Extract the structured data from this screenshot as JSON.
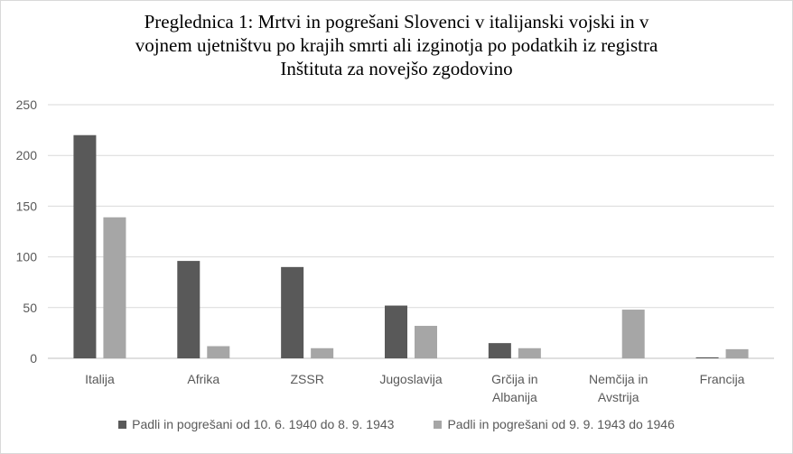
{
  "chart_data": {
    "type": "bar",
    "title_lines": [
      "Preglednica 1: Mrtvi in pogrešani Slovenci v italijanski vojski in v",
      "vojnem ujetništvu po krajih smrti ali izginotja po podatkih iz registra",
      "Inštituta za novejšo zgodovino"
    ],
    "categories": [
      [
        "Italija"
      ],
      [
        "Afrika"
      ],
      [
        "ZSSR"
      ],
      [
        "Jugoslavija"
      ],
      [
        "Grčija in",
        "Albanija"
      ],
      [
        "Nemčija in",
        "Avstrija"
      ],
      [
        "Francija"
      ]
    ],
    "series": [
      {
        "name": "Padli in pogrešani od 10. 6. 1940 do 8. 9. 1943",
        "color": "#595959",
        "values": [
          220,
          96,
          90,
          52,
          15,
          0,
          1
        ]
      },
      {
        "name": "Padli in pogrešani od 9. 9. 1943 do 1946",
        "color": "#a6a6a6",
        "values": [
          139,
          12,
          10,
          32,
          10,
          48,
          9
        ]
      }
    ],
    "ylim": [
      0,
      250
    ],
    "yticks": [
      "0",
      "50",
      "100",
      "150",
      "200",
      "250"
    ],
    "grid": true,
    "legend_position": "bottom"
  }
}
